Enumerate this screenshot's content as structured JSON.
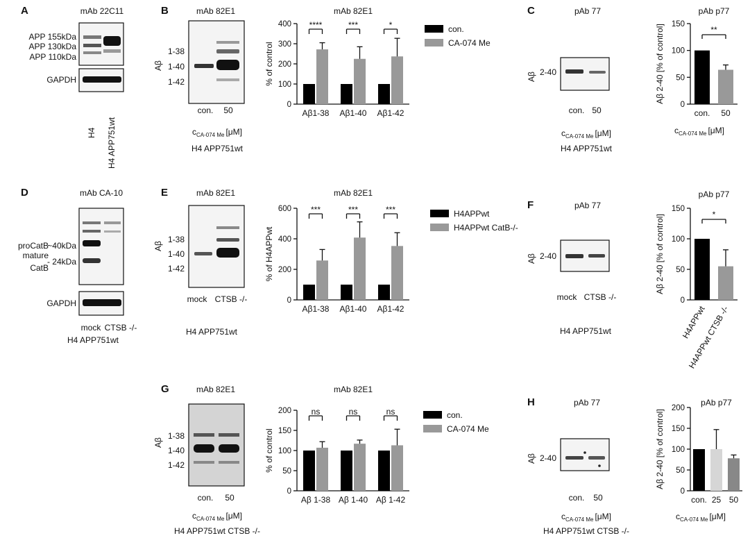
{
  "figure": {
    "panels": {
      "A": {
        "letter": "A",
        "title": "mAb 22C11",
        "bands": [
          "APP 155kDa",
          "APP 130kDa",
          "APP 110kDa"
        ],
        "loading": "GAPDH",
        "lanes": [
          "H4",
          "H4 APP751wt"
        ]
      },
      "B": {
        "letter": "B",
        "blot_title": "mAb 82E1",
        "chart_title": "mAb 82E1",
        "ylabel_blot": "Aβ",
        "bands": [
          "1-38",
          "1-40",
          "1-42"
        ],
        "lanes": [
          "con.",
          "50"
        ],
        "conc_label": "c",
        "conc_sub": "CA-074 Me",
        "conc_unit": "[μM]",
        "cell_line": "H4 APP751wt"
      },
      "C": {
        "letter": "C",
        "blot_title": "pAb 77",
        "chart_title": "pAb p77",
        "ylabel_blot": "Aβ",
        "band": "2-40",
        "lanes": [
          "con.",
          "50"
        ],
        "conc_label": "c",
        "conc_sub": "CA-074 Me",
        "conc_unit": "[μM]",
        "cell_line": "H4 APP751wt",
        "chart_xlabel_c": "c",
        "chart_xlabel_sub": "CA-074 Me",
        "chart_xlabel_unit": "[μM]"
      },
      "D": {
        "letter": "D",
        "title": "mAb CA-10",
        "bands": [
          "proCatB ~40kDa",
          "mature CatB ~24kDa"
        ],
        "band_labels": {
          "procatb": "proCatB",
          "kda40": "~40kDa",
          "mature": "mature",
          "catb": "CatB",
          "kda24": "- 24kDa"
        },
        "loading": "GAPDH",
        "lanes": [
          "mock",
          "CTSB -/-"
        ],
        "cell_line": "H4 APP751wt"
      },
      "E": {
        "letter": "E",
        "blot_title": "mAb 82E1",
        "chart_title": "mAb 82E1",
        "ylabel_blot": "Aβ",
        "bands": [
          "1-38",
          "1-40",
          "1-42"
        ],
        "lanes": [
          "mock",
          "CTSB -/-"
        ],
        "cell_line": "H4 APP751wt"
      },
      "F": {
        "letter": "F",
        "blot_title": "pAb 77",
        "chart_title": "pAb p77",
        "ylabel_blot": "Aβ",
        "band": "2-40",
        "lanes": [
          "mock",
          "CTSB -/-"
        ],
        "cell_line": "H4 APP751wt"
      },
      "G": {
        "letter": "G",
        "blot_title": "mAb 82E1",
        "chart_title": "mAb 82E1",
        "ylabel_blot": "Aβ",
        "bands": [
          "1-38",
          "1-40",
          "1-42"
        ],
        "lanes": [
          "con.",
          "50"
        ],
        "conc_label": "c",
        "conc_sub": "CA-074 Me",
        "conc_unit": "[μM]",
        "cell_line": "H4 APP751wt CTSB -/-"
      },
      "H": {
        "letter": "H",
        "blot_title": "pAb 77",
        "chart_title": "pAb p77",
        "ylabel_blot": "Aβ",
        "band": "2-40",
        "lanes": [
          "con.",
          "50"
        ],
        "conc_label": "c",
        "conc_sub": "CA-074 Me",
        "conc_unit": "[μM]",
        "cell_line": "H4 APP751wt CTSB -/-",
        "chart_xlabel_c": "c",
        "chart_xlabel_sub": "CA-074 Me",
        "chart_xlabel_unit": "[μM]"
      }
    }
  },
  "chart_data": [
    {
      "id": "B",
      "type": "bar",
      "title": "mAb 82E1",
      "ylabel": "% of control",
      "ylim": [
        0,
        400
      ],
      "yticks": [
        0,
        100,
        200,
        300,
        400
      ],
      "categories": [
        "Aβ1-38",
        "Aβ1-40",
        "Aβ1-42"
      ],
      "series": [
        {
          "name": "con.",
          "color": "#000000",
          "values": [
            100,
            100,
            100
          ],
          "errors": [
            0,
            0,
            0
          ]
        },
        {
          "name": "CA-074 Me",
          "color": "#999999",
          "values": [
            272,
            225,
            237
          ],
          "errors": [
            33,
            60,
            90
          ]
        }
      ],
      "significance": [
        "****",
        "***",
        "*"
      ],
      "legend": "right"
    },
    {
      "id": "C",
      "type": "bar",
      "title": "pAb p77",
      "ylabel": "Aβ 2-40 [% of control]",
      "ylim": [
        0,
        150
      ],
      "yticks": [
        0,
        50,
        100,
        150
      ],
      "categories": [
        "con.",
        "50"
      ],
      "series": [
        {
          "name": "",
          "values": [
            100,
            64
          ],
          "errors": [
            0,
            9
          ],
          "colors": [
            "#000000",
            "#999999"
          ]
        }
      ],
      "significance": [
        "**"
      ]
    },
    {
      "id": "E",
      "type": "bar",
      "title": "mAb 82E1",
      "ylabel": "% of H4APPwt",
      "ylim": [
        0,
        600
      ],
      "yticks": [
        0,
        200,
        400,
        600
      ],
      "categories": [
        "Aβ1-38",
        "Aβ1-40",
        "Aβ1-42"
      ],
      "series": [
        {
          "name": "H4APPwt",
          "color": "#000000",
          "values": [
            100,
            100,
            100
          ],
          "errors": [
            0,
            0,
            0
          ]
        },
        {
          "name": "H4APPwt CatB-/-",
          "color": "#999999",
          "values": [
            258,
            408,
            353
          ],
          "errors": [
            72,
            103,
            87
          ]
        }
      ],
      "significance": [
        "***",
        "***",
        "***"
      ],
      "legend": "right"
    },
    {
      "id": "F",
      "type": "bar",
      "title": "pAb p77",
      "ylabel": "Aβ 2-40 [% of control]",
      "ylim": [
        0,
        150
      ],
      "yticks": [
        0,
        50,
        100,
        150
      ],
      "categories": [
        "H4APPwt",
        "H4APPwt CTSB -/-"
      ],
      "series": [
        {
          "name": "",
          "values": [
            100,
            55
          ],
          "errors": [
            0,
            27
          ],
          "colors": [
            "#000000",
            "#999999"
          ]
        }
      ],
      "significance": [
        "*"
      ]
    },
    {
      "id": "G",
      "type": "bar",
      "title": "mAb 82E1",
      "ylabel": "% of control",
      "ylim": [
        0,
        200
      ],
      "yticks": [
        0,
        50,
        100,
        150,
        200
      ],
      "categories": [
        "Aβ 1-38",
        "Aβ 1-40",
        "Aβ 1-42"
      ],
      "series": [
        {
          "name": "con.",
          "color": "#000000",
          "values": [
            100,
            100,
            100
          ],
          "errors": [
            0,
            0,
            0
          ]
        },
        {
          "name": "CA-074 Me",
          "color": "#999999",
          "values": [
            107,
            117,
            113
          ],
          "errors": [
            15,
            9,
            40
          ]
        }
      ],
      "significance": [
        "ns",
        "ns",
        "ns"
      ],
      "legend": "right"
    },
    {
      "id": "H",
      "type": "bar",
      "title": "pAb p77",
      "ylabel": "Aβ 2-40 [% of control]",
      "ylim": [
        0,
        200
      ],
      "yticks": [
        0,
        50,
        100,
        150,
        200
      ],
      "categories": [
        "con.",
        "25",
        "50"
      ],
      "series": [
        {
          "name": "",
          "values": [
            100,
            100,
            78
          ],
          "errors": [
            0,
            47,
            8
          ],
          "colors": [
            "#000000",
            "#d6d6d6",
            "#888888"
          ]
        }
      ]
    }
  ]
}
